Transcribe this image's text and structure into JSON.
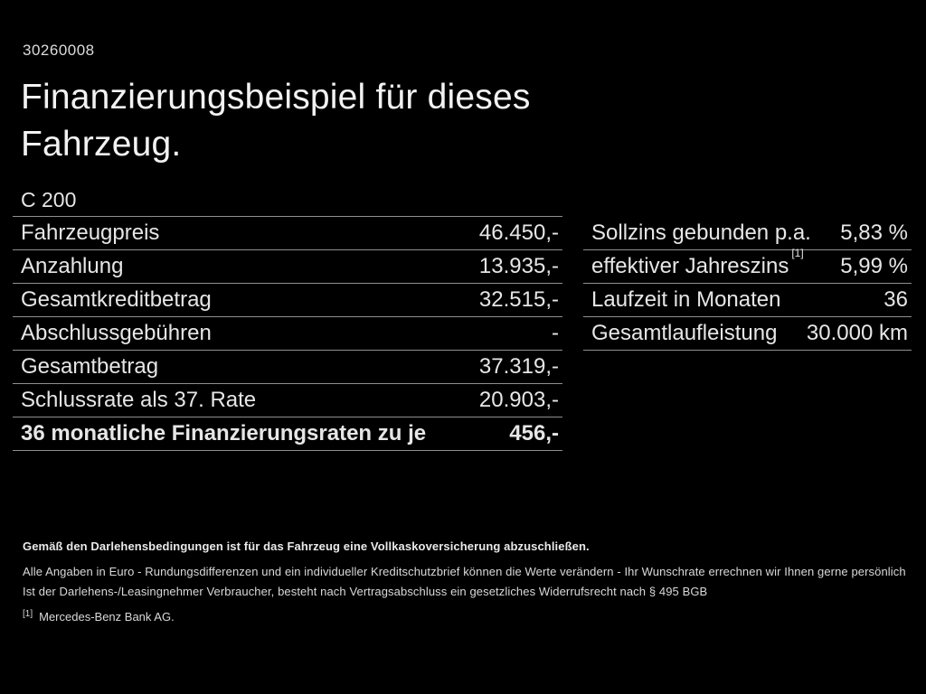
{
  "page": {
    "document_id": "30260008",
    "title": "Finanzierungsbeispiel für dieses Fahrzeug.",
    "model": "C 200",
    "colors": {
      "background": "#000000",
      "text": "#e6e6e6",
      "divider": "#8f8f8f"
    }
  },
  "left_table": {
    "rows": [
      {
        "label": "Fahrzeugpreis",
        "value": "46.450,-"
      },
      {
        "label": "Anzahlung",
        "value": "13.935,-"
      },
      {
        "label": "Gesamtkreditbetrag",
        "value": "32.515,-"
      },
      {
        "label": "Abschlussgebühren",
        "value": "-"
      },
      {
        "label": "Gesamtbetrag",
        "value": "37.319,-"
      },
      {
        "label": "Schlussrate als 37. Rate",
        "value": "20.903,-"
      },
      {
        "label": "36 monatliche Finanzierungsraten zu je",
        "value": "456,-"
      }
    ]
  },
  "right_table": {
    "rows": [
      {
        "label": "Sollzins gebunden p.a.",
        "value": "5,83 %"
      },
      {
        "label": "effektiver Jahreszins",
        "footnote_marker": "[1]",
        "value": "5,99 %"
      },
      {
        "label": "Laufzeit in Monaten",
        "value": "36"
      },
      {
        "label": "Gesamtlaufleistung",
        "value": "30.000 km"
      }
    ]
  },
  "footer": {
    "insurance_note": "Gemäß den Darlehensbedingungen ist für das Fahrzeug eine Vollkaskoversicherung abzuschließen.",
    "disclaimer1": "Alle Angaben in Euro - Rundungsdifferenzen und ein individueller Kreditschutzbrief können die Werte verändern - Ihr Wunschrate errechnen wir Ihnen gerne persönlich",
    "disclaimer2": "Ist der Darlehens-/Leasingnehmer Verbraucher, besteht nach Vertragsabschluss ein gesetzliches Widerrufsrecht nach § 495 BGB",
    "footnote_marker": "[1]",
    "footnote_text": "Mercedes-Benz Bank AG."
  }
}
